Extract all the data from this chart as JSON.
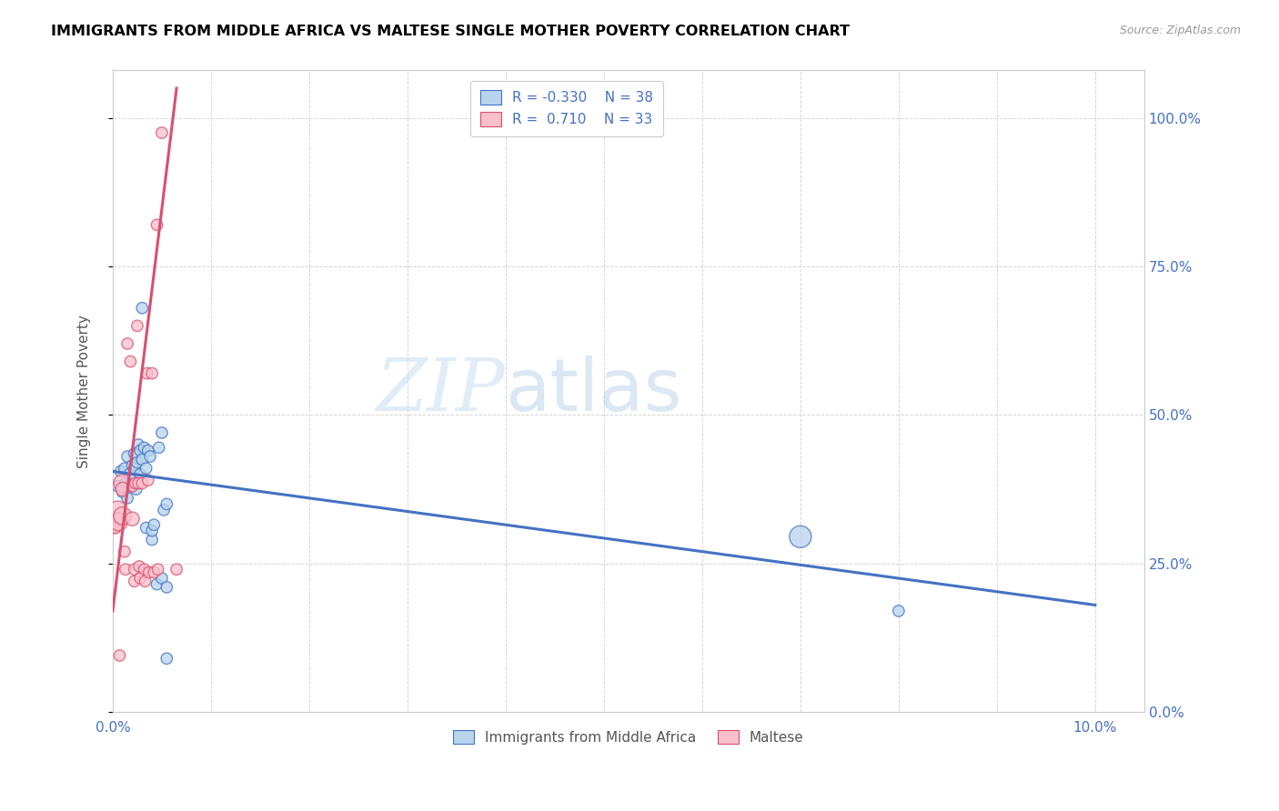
{
  "title": "IMMIGRANTS FROM MIDDLE AFRICA VS MALTESE SINGLE MOTHER POVERTY CORRELATION CHART",
  "source": "Source: ZipAtlas.com",
  "ylabel": "Single Mother Poverty",
  "legend_blue_label": "Immigrants from Middle Africa",
  "legend_pink_label": "Maltese",
  "blue_scatter": [
    [
      0.05,
      38.0
    ],
    [
      0.08,
      40.5
    ],
    [
      0.1,
      37.0
    ],
    [
      0.12,
      41.0
    ],
    [
      0.13,
      38.5
    ],
    [
      0.15,
      36.0
    ],
    [
      0.15,
      43.0
    ],
    [
      0.17,
      40.0
    ],
    [
      0.18,
      38.0
    ],
    [
      0.2,
      41.5
    ],
    [
      0.2,
      39.0
    ],
    [
      0.22,
      43.5
    ],
    [
      0.22,
      41.0
    ],
    [
      0.24,
      37.5
    ],
    [
      0.25,
      42.0
    ],
    [
      0.26,
      45.0
    ],
    [
      0.28,
      44.0
    ],
    [
      0.28,
      40.0
    ],
    [
      0.3,
      68.0
    ],
    [
      0.3,
      42.5
    ],
    [
      0.32,
      44.5
    ],
    [
      0.34,
      41.0
    ],
    [
      0.34,
      31.0
    ],
    [
      0.36,
      44.0
    ],
    [
      0.38,
      43.0
    ],
    [
      0.4,
      29.0
    ],
    [
      0.4,
      30.5
    ],
    [
      0.42,
      31.5
    ],
    [
      0.45,
      21.5
    ],
    [
      0.47,
      44.5
    ],
    [
      0.5,
      47.0
    ],
    [
      0.5,
      22.5
    ],
    [
      0.52,
      34.0
    ],
    [
      0.55,
      35.0
    ],
    [
      0.55,
      21.0
    ],
    [
      0.55,
      9.0
    ],
    [
      7.0,
      29.5
    ],
    [
      8.0,
      17.0
    ]
  ],
  "blue_scatter_sizes": [
    80,
    80,
    80,
    80,
    80,
    80,
    80,
    80,
    80,
    80,
    80,
    80,
    80,
    80,
    80,
    80,
    80,
    80,
    80,
    80,
    80,
    80,
    80,
    80,
    80,
    80,
    80,
    80,
    80,
    80,
    80,
    80,
    80,
    80,
    80,
    80,
    300,
    80
  ],
  "pink_scatter": [
    [
      0.02,
      31.0
    ],
    [
      0.03,
      31.0
    ],
    [
      0.05,
      34.0
    ],
    [
      0.06,
      32.0
    ],
    [
      0.07,
      9.5
    ],
    [
      0.1,
      38.5
    ],
    [
      0.1,
      37.5
    ],
    [
      0.1,
      33.0
    ],
    [
      0.12,
      27.0
    ],
    [
      0.13,
      24.0
    ],
    [
      0.15,
      62.0
    ],
    [
      0.18,
      59.0
    ],
    [
      0.2,
      38.0
    ],
    [
      0.2,
      32.5
    ],
    [
      0.22,
      24.0
    ],
    [
      0.22,
      22.0
    ],
    [
      0.23,
      38.5
    ],
    [
      0.25,
      65.0
    ],
    [
      0.26,
      38.5
    ],
    [
      0.27,
      24.5
    ],
    [
      0.28,
      22.5
    ],
    [
      0.3,
      38.5
    ],
    [
      0.32,
      24.0
    ],
    [
      0.33,
      22.0
    ],
    [
      0.35,
      57.0
    ],
    [
      0.36,
      39.0
    ],
    [
      0.37,
      23.5
    ],
    [
      0.4,
      57.0
    ],
    [
      0.42,
      23.5
    ],
    [
      0.45,
      82.0
    ],
    [
      0.46,
      24.0
    ],
    [
      0.5,
      97.5
    ],
    [
      0.65,
      24.0
    ]
  ],
  "pink_scatter_sizes": [
    80,
    80,
    200,
    200,
    80,
    200,
    120,
    200,
    80,
    80,
    80,
    80,
    80,
    120,
    80,
    80,
    80,
    80,
    80,
    80,
    80,
    80,
    80,
    80,
    80,
    80,
    80,
    80,
    80,
    80,
    80,
    80,
    80
  ],
  "blue_line_x": [
    0.0,
    10.0
  ],
  "blue_line_y": [
    40.5,
    18.0
  ],
  "pink_line_x": [
    0.0,
    0.65
  ],
  "pink_line_y": [
    17.0,
    105.0
  ],
  "blue_color": "#b8d4ee",
  "pink_color": "#f9c0cb",
  "blue_line_color": "#4472c4",
  "pink_line_color": "#d94f6e",
  "xlim": [
    0.0,
    10.5
  ],
  "ylim": [
    0.0,
    108.0
  ],
  "watermark_zip": "ZIP",
  "watermark_atlas": "atlas",
  "xticks": [
    0.0,
    1.0,
    2.0,
    3.0,
    4.0,
    5.0,
    6.0,
    7.0,
    8.0,
    9.0,
    10.0
  ],
  "xtick_labels_show": {
    "0": "0.0%",
    "10": "10.0%"
  },
  "yticks": [
    0.0,
    25.0,
    50.0,
    75.0,
    100.0
  ],
  "ytick_labels_right": [
    "0.0%",
    "25.0%",
    "50.0%",
    "75.0%",
    "100.0%"
  ]
}
